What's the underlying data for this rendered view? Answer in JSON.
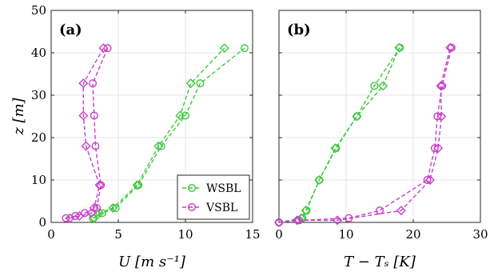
{
  "chart_data": [
    {
      "type": "line",
      "panel_label": "(a)",
      "xlabel": "U [m s⁻¹]",
      "ylabel": "z [m]",
      "xlim": [
        0,
        15
      ],
      "ylim": [
        0,
        50
      ],
      "xticks": [
        "0",
        "5",
        "10",
        "15"
      ],
      "yticks": [
        "0",
        "10",
        "20",
        "30",
        "40",
        "50"
      ],
      "grid": true,
      "legend_position": "bottom-right",
      "legend": [
        "WSBL",
        "VSBL"
      ],
      "series": [
        {
          "name": "WSBL",
          "color": "#3dc83d",
          "runs": [
            {
              "marker": "circle",
              "x": [
                3.1,
                3.8,
                4.8,
                6.5,
                8.2,
                10.0,
                11.1,
                14.4
              ],
              "y": [
                1.0,
                2.2,
                3.4,
                8.8,
                18.0,
                25.2,
                32.8,
                41.1
              ]
            },
            {
              "marker": "diamond",
              "x": [
                3.2,
                3.6,
                4.6,
                6.4,
                8.0,
                9.6,
                10.4,
                12.9
              ],
              "y": [
                1.0,
                2.2,
                3.4,
                8.8,
                18.0,
                25.2,
                32.8,
                41.1
              ]
            }
          ]
        },
        {
          "name": "VSBL",
          "color": "#c83dc8",
          "runs": [
            {
              "marker": "circle",
              "x": [
                1.1,
                1.8,
                2.5,
                3.4,
                3.7,
                3.3,
                3.2,
                3.1,
                4.2
              ],
              "y": [
                1.0,
                1.5,
                2.2,
                3.4,
                8.8,
                18.0,
                25.2,
                32.8,
                41.1
              ]
            },
            {
              "marker": "diamond",
              "x": [
                1.4,
                2.1,
                3.0,
                3.2,
                3.6,
                2.6,
                2.4,
                2.4,
                3.9
              ],
              "y": [
                1.0,
                1.5,
                2.2,
                3.4,
                8.8,
                18.0,
                25.2,
                32.8,
                41.1
              ]
            }
          ]
        }
      ]
    },
    {
      "type": "line",
      "panel_label": "(b)",
      "xlabel": "T − Tₛ [K]",
      "ylabel": "",
      "xlim": [
        0,
        30
      ],
      "ylim": [
        0,
        50
      ],
      "xticks": [
        "0",
        "10",
        "20",
        "30"
      ],
      "yticks": [],
      "grid": true,
      "series": [
        {
          "name": "WSBL",
          "color": "#3dc83d",
          "runs": [
            {
              "marker": "circle",
              "x": [
                0.0,
                3.5,
                4.1,
                6.0,
                8.5,
                11.6,
                14.2,
                18.0
              ],
              "y": [
                0.0,
                1.0,
                2.8,
                10.0,
                17.5,
                25.0,
                32.2,
                41.2
              ]
            },
            {
              "marker": "diamond",
              "x": [
                0.0,
                3.3,
                4.0,
                6.0,
                8.4,
                11.6,
                15.5,
                17.9
              ],
              "y": [
                0.0,
                1.0,
                2.8,
                10.0,
                17.5,
                25.0,
                32.2,
                41.2
              ]
            }
          ]
        },
        {
          "name": "VSBL",
          "color": "#c83dc8",
          "runs": [
            {
              "marker": "circle",
              "x": [
                0.0,
                3.0,
                10.4,
                15.0,
                22.1,
                23.2,
                23.6,
                24.3,
                25.7
              ],
              "y": [
                0.0,
                0.5,
                1.0,
                2.8,
                10.0,
                17.5,
                25.0,
                32.2,
                41.2
              ]
            },
            {
              "marker": "diamond",
              "x": [
                0.0,
                2.7,
                8.7,
                18.2,
                22.5,
                23.7,
                24.2,
                24.1,
                25.5
              ],
              "y": [
                0.0,
                0.5,
                0.5,
                2.8,
                10.0,
                17.5,
                25.0,
                32.2,
                41.2
              ]
            }
          ]
        }
      ]
    }
  ]
}
